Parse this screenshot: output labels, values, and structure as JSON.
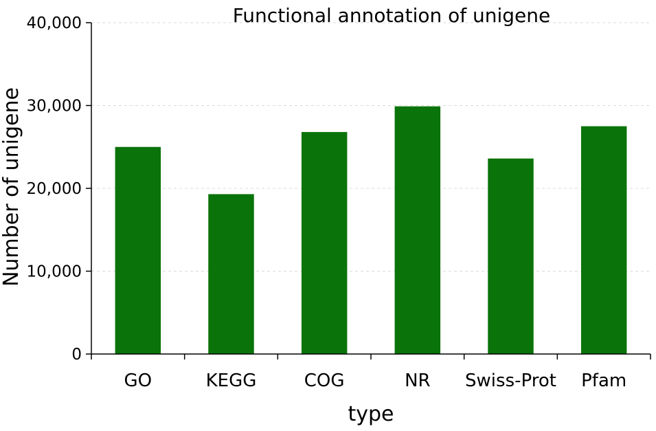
{
  "chart_data": {
    "type": "bar",
    "title": "Functional annotation of unigene",
    "xlabel": "type",
    "ylabel": "Number of unigene",
    "categories": [
      "GO",
      "KEGG",
      "COG",
      "NR",
      "Swiss-Prot",
      "Pfam"
    ],
    "values": [
      25000,
      19300,
      26800,
      29900,
      23600,
      27500
    ],
    "ylim": [
      0,
      40000
    ],
    "yticks": [
      0,
      10000,
      20000,
      30000,
      40000
    ],
    "ytick_labels": [
      "0",
      "10,000",
      "20,000",
      "30,000",
      "40,000"
    ],
    "grid": true,
    "legend": false,
    "colors": {
      "bar": "#0a730a"
    }
  }
}
